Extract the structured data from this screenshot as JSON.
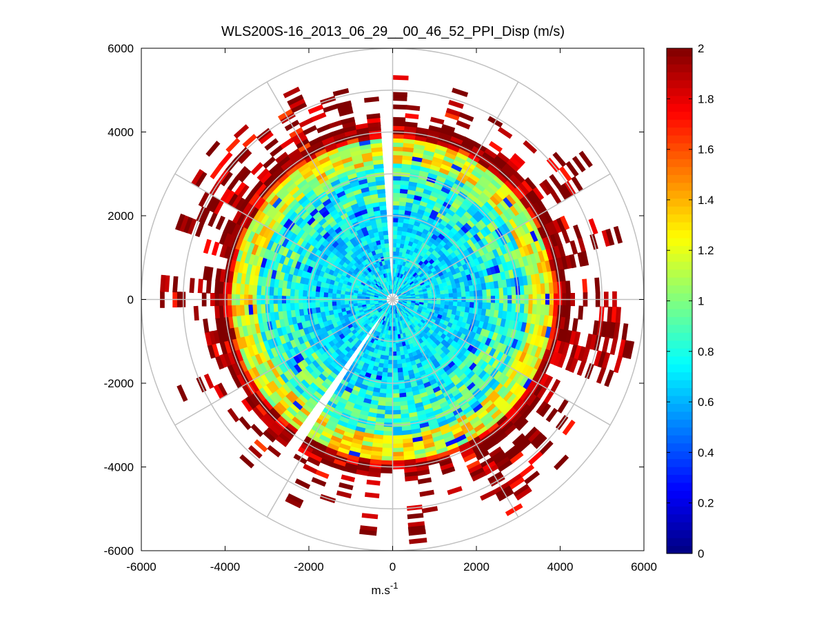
{
  "chart_data": {
    "type": "heatmap",
    "subtype": "polar-ppi-scan",
    "title": "WLS200S-16_2013_06_29__00_46_52_PPI_Disp (m/s)",
    "xlabel": "m.s",
    "xlabel_superscript": "-1",
    "ylabel": "",
    "xlim": [
      -6000,
      6000
    ],
    "ylim": [
      -6000,
      6000
    ],
    "xticks": [
      -6000,
      -4000,
      -2000,
      0,
      2000,
      4000,
      6000
    ],
    "yticks": [
      6000,
      4000,
      2000,
      0,
      -2000,
      -4000,
      -6000
    ],
    "xtick_labels": [
      "-6000",
      "-4000",
      "-2000",
      "0",
      "2000",
      "4000",
      "6000"
    ],
    "ytick_labels": [
      "6000",
      "4000",
      "2000",
      "0",
      "-2000",
      "-4000",
      "-6000"
    ],
    "range_rings_m": [
      1000,
      2000,
      3000,
      4000,
      5000,
      6000
    ],
    "radial_spokes_deg": [
      0,
      30,
      60,
      90,
      120,
      150,
      180,
      210,
      240,
      270,
      300,
      330
    ],
    "colorbar": {
      "colormap": "jet",
      "min": 0,
      "max": 2,
      "ticks": [
        2,
        1.8,
        1.6,
        1.4,
        1.2,
        1,
        0.8,
        0.6,
        0.4,
        0.2,
        0
      ],
      "tick_labels": [
        "2",
        "1.8",
        "1.6",
        "1.4",
        "1.2",
        "1",
        "0.8",
        "0.6",
        "0.4",
        "0.2",
        "0"
      ]
    },
    "value_distribution": [
      {
        "range_from_m": 0,
        "range_to_m": 2200,
        "dispersion_ms": 0.7,
        "note": "mostly cyan / light blue near scanner"
      },
      {
        "range_from_m": 2200,
        "range_to_m": 3200,
        "dispersion_ms": 0.85,
        "note": "cyan to green"
      },
      {
        "range_from_m": 3200,
        "range_to_m": 3900,
        "dispersion_ms": 1.2,
        "note": "green / yellow / orange"
      },
      {
        "range_from_m": 3900,
        "range_to_m": 6000,
        "dispersion_ms": 1.95,
        "note": "dark red, sparse at far range"
      }
    ],
    "data_gaps": [
      {
        "azimuth_from_deg": -4,
        "azimuth_to_deg": 1,
        "note": "blocked sector near north"
      },
      {
        "azimuth_from_deg": 212,
        "azimuth_to_deg": 216,
        "note": "thin blocked ray to south-west"
      }
    ]
  }
}
